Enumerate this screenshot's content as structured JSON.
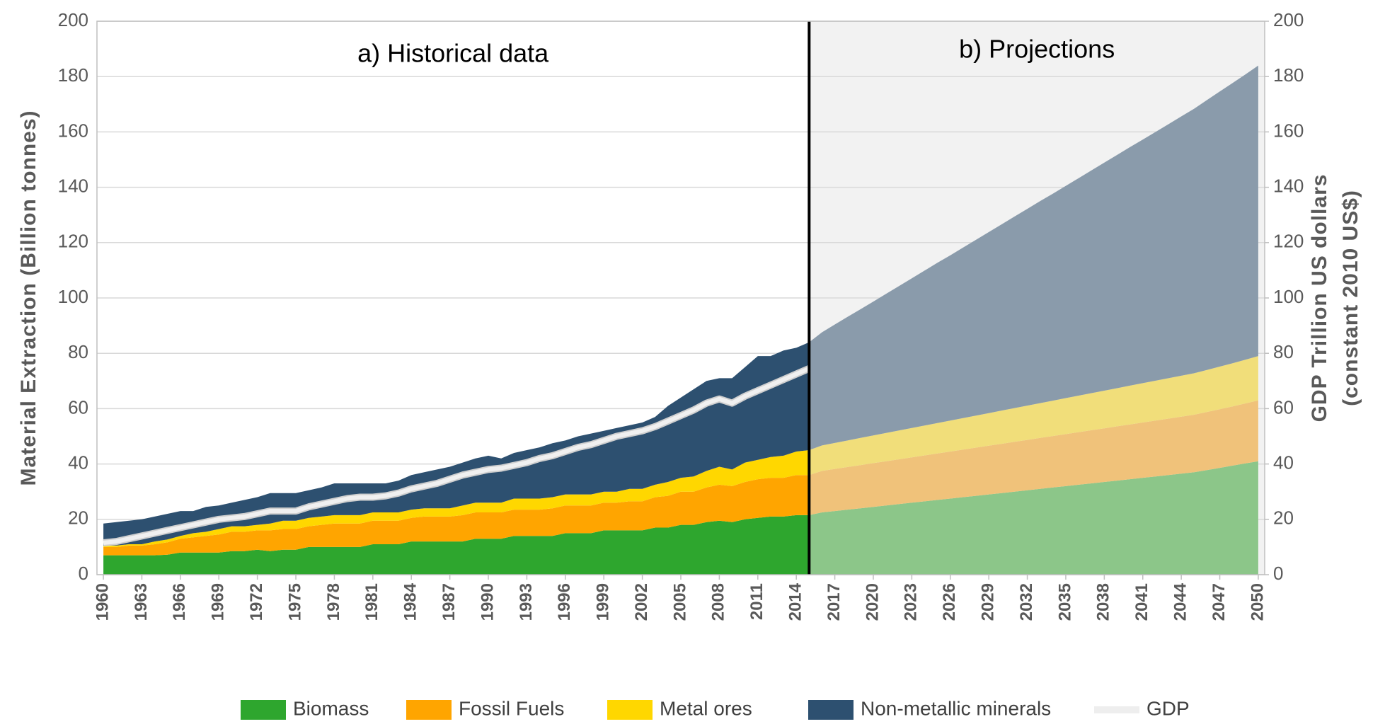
{
  "chart_data": {
    "type": "stacked_area",
    "annotations": [
      "a) Historical data",
      "b) Projections"
    ],
    "y_label": "Material Extraction (Billion tonnes)",
    "y2_label": [
      "GDP Trillion US dollars",
      "(constant 2010 US$)"
    ],
    "projection_start": 2015,
    "projection_background": "#f2f2f2",
    "x": [
      1960,
      1961,
      1962,
      1963,
      1964,
      1965,
      1966,
      1967,
      1968,
      1969,
      1970,
      1971,
      1972,
      1973,
      1974,
      1975,
      1976,
      1977,
      1978,
      1979,
      1980,
      1981,
      1982,
      1983,
      1984,
      1985,
      1986,
      1987,
      1988,
      1989,
      1990,
      1991,
      1992,
      1993,
      1994,
      1995,
      1996,
      1997,
      1998,
      1999,
      2000,
      2001,
      2002,
      2003,
      2004,
      2005,
      2006,
      2007,
      2008,
      2009,
      2010,
      2011,
      2012,
      2013,
      2014,
      2015,
      2016,
      2017,
      2018,
      2019,
      2020,
      2021,
      2022,
      2023,
      2024,
      2025,
      2026,
      2027,
      2028,
      2029,
      2030,
      2031,
      2032,
      2033,
      2034,
      2035,
      2036,
      2037,
      2038,
      2039,
      2040,
      2041,
      2042,
      2043,
      2044,
      2045,
      2046,
      2047,
      2048,
      2049,
      2050
    ],
    "xlim": [
      1959.5,
      2050.5
    ],
    "xticks": [
      1960,
      1963,
      1966,
      1969,
      1972,
      1975,
      1978,
      1981,
      1984,
      1987,
      1990,
      1993,
      1996,
      1999,
      2002,
      2005,
      2008,
      2011,
      2014,
      2017,
      2020,
      2023,
      2026,
      2029,
      2032,
      2035,
      2038,
      2041,
      2044,
      2047,
      2050
    ],
    "ylim": [
      0,
      200
    ],
    "yticks": [
      0,
      20,
      40,
      60,
      80,
      100,
      120,
      140,
      160,
      180,
      200
    ],
    "y2lim": [
      0,
      200
    ],
    "y2ticks": [
      0,
      20,
      40,
      60,
      80,
      100,
      120,
      140,
      160,
      180,
      200
    ],
    "grid": true,
    "series": [
      {
        "name": "Biomass",
        "color": "#2ea62e",
        "projection_color": "#8cc689",
        "values": [
          7,
          7,
          7,
          7,
          7,
          7.2,
          8,
          8,
          8,
          8,
          8.5,
          8.5,
          9,
          8.5,
          9,
          9,
          10,
          10,
          10,
          10,
          10,
          11,
          11,
          11,
          12,
          12,
          12,
          12,
          12,
          13,
          13,
          13,
          14,
          14,
          14,
          14,
          15,
          15,
          15,
          16,
          16,
          16,
          16,
          17,
          17,
          18,
          18,
          19,
          19.5,
          19,
          20,
          20.5,
          21,
          21,
          21.5,
          21.5,
          22.5,
          23,
          23.5,
          24,
          24.5,
          25,
          25.5,
          26,
          26.5,
          27,
          27.5,
          28,
          28.5,
          29,
          29.5,
          30,
          30.5,
          31,
          31.5,
          32,
          32.5,
          33,
          33.5,
          34,
          34.5,
          35,
          35.5,
          36,
          36.5,
          37,
          37.8,
          38.6,
          39.4,
          40.2,
          41
        ]
      },
      {
        "name": "Fossil Fuels",
        "color": "#ffa500",
        "projection_color": "#f0c27a",
        "values": [
          3,
          3,
          3.5,
          3.5,
          4,
          4.5,
          5,
          5.5,
          6,
          6.5,
          7,
          7,
          7,
          7.5,
          7.5,
          7.5,
          7.5,
          8,
          8.5,
          8.5,
          8.5,
          8.5,
          8.5,
          8.5,
          8.5,
          9,
          9,
          9,
          9.5,
          9.5,
          9.5,
          9.5,
          9.5,
          9.5,
          9.5,
          10,
          10,
          10,
          10,
          10,
          10,
          10.5,
          10.5,
          11,
          11.5,
          12,
          12,
          12.5,
          13,
          13,
          13.5,
          14,
          14,
          14,
          14.5,
          14.5,
          15,
          15.2,
          15.4,
          15.6,
          15.8,
          16,
          16.2,
          16.4,
          16.6,
          16.8,
          17,
          17.2,
          17.4,
          17.6,
          17.8,
          18,
          18.2,
          18.4,
          18.6,
          18.8,
          19,
          19.2,
          19.4,
          19.6,
          19.8,
          20,
          20.2,
          20.4,
          20.6,
          20.8,
          21,
          21.2,
          21.4,
          21.7,
          22
        ]
      },
      {
        "name": "Metal ores",
        "color": "#ffd700",
        "projection_color": "#f1de7a",
        "values": [
          0.5,
          0.5,
          0.5,
          0.5,
          1,
          1,
          1,
          1.5,
          1.5,
          2,
          2,
          2,
          2,
          2.5,
          3,
          3,
          3,
          3,
          3,
          3,
          3,
          3,
          3,
          3,
          3,
          3,
          3,
          3,
          3.5,
          3.5,
          3.5,
          3.5,
          4,
          4,
          4,
          4,
          4,
          4,
          4,
          4,
          4,
          4.5,
          4.5,
          4.5,
          5,
          5,
          5.5,
          6,
          6.5,
          6,
          7,
          7,
          7.5,
          8,
          8.5,
          9,
          9.2,
          9.4,
          9.6,
          9.8,
          10,
          10.2,
          10.4,
          10.6,
          10.8,
          11,
          11.2,
          11.4,
          11.6,
          11.8,
          12,
          12.2,
          12.4,
          12.6,
          12.8,
          13,
          13.2,
          13.4,
          13.6,
          13.8,
          14,
          14.2,
          14.4,
          14.6,
          14.8,
          15,
          15.2,
          15.4,
          15.6,
          15.8,
          16
        ]
      },
      {
        "name": "Non-metallic minerals",
        "color": "#2d5070",
        "projection_color": "#8a9bab",
        "values": [
          8,
          8.5,
          8.5,
          9,
          9,
          9.3,
          9,
          8,
          9,
          8.5,
          8.5,
          9.5,
          10,
          11,
          10,
          10,
          10,
          10.5,
          11.5,
          11.5,
          11.5,
          10.5,
          10.5,
          11.5,
          12.5,
          13,
          14,
          15,
          15.5,
          16,
          17,
          16,
          16.5,
          17.5,
          18.5,
          19.5,
          19.5,
          21,
          22,
          22,
          23,
          23,
          24,
          24.5,
          27.5,
          29,
          31.5,
          32.5,
          32,
          33,
          34.5,
          37.5,
          36.5,
          38,
          37.5,
          39,
          40.9,
          42.8,
          44.7,
          46.5,
          48.4,
          50.3,
          52.2,
          54.1,
          56,
          57.9,
          59.7,
          61.6,
          63.5,
          65.4,
          67.3,
          69.2,
          71.1,
          73,
          74.8,
          76.7,
          78.6,
          80.5,
          82.4,
          84.3,
          86.2,
          88,
          89.9,
          91.8,
          93.7,
          95.6,
          97.5,
          99.4,
          101.3,
          103.1,
          105
        ]
      },
      {
        "name": "GDP",
        "color": "#f0f0f0",
        "axis": "y2",
        "values": [
          11.5,
          12,
          13,
          14,
          15,
          16,
          17,
          18,
          19,
          20,
          20.5,
          21,
          22,
          23,
          23,
          23,
          24.5,
          25.5,
          26.5,
          27.5,
          28,
          28,
          28.5,
          29.5,
          31,
          32,
          33,
          34.5,
          36,
          37,
          38,
          38.5,
          39.5,
          40.5,
          42,
          43,
          44.5,
          46,
          47,
          48.5,
          50,
          51,
          52,
          53.5,
          55.5,
          57.5,
          59.5,
          62,
          63.5,
          62,
          64.5,
          66.5,
          68.5,
          70.5,
          72.5,
          74.5,
          null,
          null,
          null,
          null,
          null,
          null,
          null,
          null,
          null,
          null,
          null,
          null,
          null,
          null,
          null,
          null,
          null,
          null,
          null,
          null,
          null,
          null,
          null,
          null,
          null,
          null,
          null,
          null,
          null,
          null,
          null,
          null,
          null,
          null,
          null
        ]
      }
    ]
  }
}
